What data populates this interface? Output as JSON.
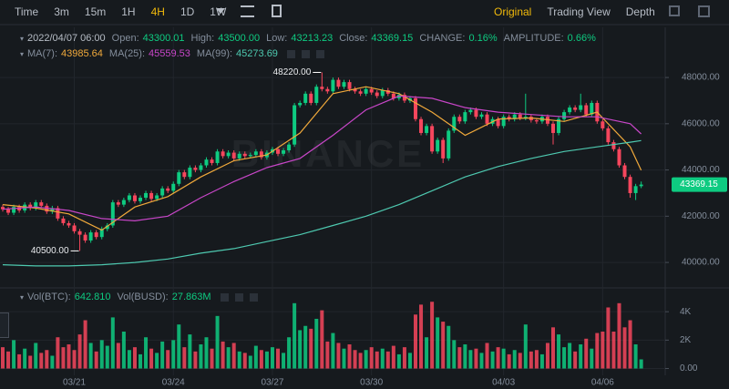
{
  "toolbar": {
    "intervals": [
      "Time",
      "3m",
      "15m",
      "1H",
      "4H",
      "1D",
      "1W"
    ],
    "active": "4H",
    "views": [
      "Original",
      "Trading View",
      "Depth"
    ],
    "active_view": "Original"
  },
  "info": {
    "date": "2022/04/07 06:00",
    "open_label": "Open:",
    "open": "43300.01",
    "high_label": "High:",
    "high": "43500.00",
    "low_label": "Low:",
    "low": "43213.23",
    "close_label": "Close:",
    "close": "43369.15",
    "change_label": "CHANGE:",
    "change": "0.16%",
    "amplitude_label": "AMPLITUDE:",
    "amplitude": "0.66%"
  },
  "chart_data": [
    {
      "type": "candlestick",
      "watermark": "BINANCE",
      "up_color": "#0ecb81",
      "down_color": "#f6465d",
      "categories": [
        null,
        null,
        null,
        null,
        null,
        null,
        null,
        null,
        null,
        null,
        null,
        null,
        null,
        "03/21",
        null,
        null,
        null,
        null,
        null,
        null,
        null,
        null,
        null,
        null,
        null,
        null,
        null,
        null,
        null,
        null,
        null,
        "03/24",
        null,
        null,
        null,
        null,
        null,
        null,
        null,
        null,
        null,
        null,
        null,
        null,
        null,
        null,
        null,
        null,
        null,
        "03/27",
        null,
        null,
        null,
        null,
        null,
        null,
        null,
        null,
        null,
        null,
        null,
        null,
        null,
        null,
        null,
        null,
        null,
        "03/30",
        null,
        null,
        null,
        null,
        null,
        null,
        null,
        null,
        null,
        null,
        null,
        null,
        null,
        null,
        null,
        null,
        null,
        null,
        null,
        null,
        null,
        null,
        null,
        "04/03",
        null,
        null,
        null,
        null,
        null,
        null,
        null,
        null,
        null,
        null,
        null,
        null,
        null,
        null,
        null,
        null,
        null,
        "04/06",
        null,
        null,
        null,
        null,
        null,
        null,
        null
      ],
      "open": [
        42400,
        42300,
        42150,
        42400,
        42250,
        42500,
        42350,
        42600,
        42450,
        42200,
        42350,
        41900,
        41700,
        41600,
        41350,
        41200,
        40950,
        41300,
        41100,
        41450,
        41600,
        42600,
        42500,
        42700,
        42900,
        42650,
        42800,
        43000,
        42750,
        42900,
        43200,
        43100,
        43400,
        43900,
        43700,
        44100,
        44000,
        44200,
        44450,
        44300,
        44800,
        44600,
        44750,
        44500,
        44700,
        44600,
        44650,
        44800,
        44550,
        44750,
        44900,
        44700,
        44850,
        45100,
        46800,
        46900,
        47300,
        46900,
        47600,
        47500,
        47400,
        47900,
        47600,
        47800,
        47500,
        47400,
        47300,
        47500,
        47350,
        47200,
        47450,
        47300,
        47100,
        47250,
        47000,
        47100,
        46200,
        45600,
        45900,
        44800,
        45300,
        44500,
        45700,
        46300,
        46100,
        46500,
        46600,
        46300,
        46400,
        46000,
        46200,
        45900,
        46300,
        46200,
        46400,
        46250,
        46300,
        46150,
        46100,
        46300,
        46000,
        45600,
        46200,
        46500,
        46700,
        46600,
        46800,
        46400,
        46900,
        46100,
        45800,
        45200,
        44900,
        44200,
        43700,
        43000,
        43300.01
      ],
      "high": [
        42500,
        42400,
        42500,
        42500,
        42600,
        42600,
        42700,
        42700,
        42550,
        42450,
        42450,
        42000,
        41800,
        41700,
        41450,
        41300,
        41400,
        41400,
        41550,
        41700,
        42700,
        42700,
        42800,
        43000,
        43000,
        42900,
        43100,
        43100,
        43000,
        43300,
        43300,
        43500,
        44000,
        44000,
        44200,
        44200,
        44300,
        44550,
        44550,
        44900,
        44900,
        44850,
        44850,
        44800,
        44800,
        44750,
        44900,
        44900,
        44850,
        45000,
        45000,
        44950,
        45200,
        46900,
        47000,
        47400,
        47400,
        47700,
        48220,
        47600,
        48000,
        48000,
        47900,
        47900,
        47600,
        47500,
        47600,
        47600,
        47450,
        47550,
        47550,
        47400,
        47350,
        47350,
        47200,
        47200,
        46300,
        46000,
        46000,
        45400,
        45400,
        45800,
        46400,
        46400,
        46600,
        46700,
        46700,
        46500,
        46500,
        46300,
        46300,
        46400,
        46400,
        46500,
        46500,
        47300,
        46400,
        46250,
        46400,
        46400,
        46100,
        46300,
        46600,
        46800,
        46800,
        47300,
        46900,
        47000,
        47000,
        46200,
        45900,
        45300,
        45000,
        44300,
        43800,
        43400,
        43500
      ],
      "low": [
        42200,
        42050,
        42050,
        42150,
        42150,
        42250,
        42250,
        42350,
        42100,
        42100,
        41800,
        41600,
        41500,
        41250,
        40500,
        40850,
        40850,
        41000,
        41000,
        41350,
        41500,
        42400,
        42400,
        42600,
        42550,
        42550,
        42700,
        42650,
        42650,
        42800,
        43000,
        43000,
        43300,
        43600,
        43600,
        43900,
        43900,
        44100,
        44200,
        44200,
        44500,
        44500,
        44400,
        44400,
        44500,
        44500,
        44550,
        44450,
        44450,
        44650,
        44600,
        44600,
        44750,
        45000,
        46700,
        46800,
        46800,
        46800,
        47400,
        47300,
        47300,
        47500,
        47500,
        47400,
        47300,
        47200,
        47200,
        47250,
        47100,
        47100,
        47200,
        47000,
        47000,
        46900,
        46900,
        46100,
        45500,
        45500,
        44700,
        44700,
        44300,
        44400,
        45600,
        46000,
        46000,
        46400,
        46200,
        46200,
        45900,
        45900,
        45800,
        45800,
        46100,
        46100,
        46150,
        46150,
        46050,
        46000,
        46000,
        45900,
        45100,
        45500,
        46100,
        46400,
        46500,
        46500,
        46300,
        46300,
        46000,
        45700,
        45100,
        44800,
        44100,
        43600,
        42800,
        42700,
        43213.23
      ],
      "close": [
        42300,
        42150,
        42400,
        42250,
        42500,
        42350,
        42600,
        42450,
        42200,
        42350,
        41900,
        41700,
        41600,
        41350,
        41200,
        40950,
        41300,
        41100,
        41450,
        41600,
        42600,
        42500,
        42700,
        42900,
        42650,
        42800,
        43000,
        42750,
        42900,
        43200,
        43100,
        43400,
        43900,
        43700,
        44100,
        44000,
        44200,
        44450,
        44300,
        44800,
        44600,
        44750,
        44500,
        44700,
        44600,
        44650,
        44800,
        44550,
        44750,
        44900,
        44700,
        44850,
        45100,
        46800,
        46900,
        47300,
        46900,
        47600,
        47500,
        47400,
        47900,
        47600,
        47800,
        47500,
        47400,
        47300,
        47500,
        47350,
        47200,
        47450,
        47300,
        47100,
        47250,
        47000,
        47100,
        46200,
        45600,
        45900,
        44800,
        45300,
        44500,
        45700,
        46300,
        46100,
        46500,
        46600,
        46300,
        46400,
        46000,
        46200,
        45900,
        46300,
        46200,
        46400,
        46250,
        46300,
        46150,
        46100,
        46300,
        46000,
        45600,
        46200,
        46500,
        46700,
        46600,
        46800,
        46400,
        46900,
        46100,
        45800,
        45200,
        44900,
        44200,
        43700,
        43000,
        43300.01,
        43369.15
      ],
      "ma": [
        {
          "name": "MA(7):",
          "color": "#f0a93b",
          "x": [
            0,
            6,
            12,
            18,
            24,
            30,
            36,
            42,
            48,
            54,
            60,
            66,
            72,
            78,
            84,
            90,
            96,
            102,
            108,
            114,
            116
          ],
          "values": [
            42500,
            42350,
            42100,
            41400,
            42400,
            42850,
            43700,
            44400,
            44650,
            45600,
            47300,
            47600,
            47300,
            46500,
            45500,
            46200,
            46250,
            46100,
            46500,
            45000,
            43985.64
          ]
        },
        {
          "name": "MA(25):",
          "color": "#c846c8",
          "x": [
            0,
            6,
            12,
            18,
            24,
            30,
            36,
            42,
            48,
            54,
            60,
            66,
            72,
            78,
            84,
            90,
            96,
            102,
            108,
            114,
            116
          ],
          "values": [
            42300,
            42400,
            42250,
            41900,
            41800,
            42000,
            42800,
            43500,
            44100,
            44500,
            45500,
            46600,
            47200,
            47100,
            46700,
            46500,
            46400,
            46300,
            46300,
            46000,
            45559.53
          ]
        },
        {
          "name": "MA(99):",
          "color": "#4ec9b0",
          "x": [
            0,
            6,
            12,
            18,
            24,
            30,
            36,
            42,
            48,
            54,
            60,
            66,
            72,
            78,
            84,
            90,
            96,
            102,
            108,
            114,
            116
          ],
          "values": [
            39900,
            39850,
            39850,
            39900,
            40000,
            40150,
            40400,
            40600,
            40900,
            41200,
            41600,
            42000,
            42500,
            43100,
            43700,
            44150,
            44500,
            44800,
            45000,
            45200,
            45273.69
          ]
        }
      ],
      "annotations": [
        {
          "value": 48220,
          "label": "48220.00"
        },
        {
          "value": 40500,
          "label": "40500.00"
        }
      ],
      "ylim": [
        38900,
        48830
      ],
      "yticks": [
        {
          "value": 40000,
          "label": "40000.00"
        },
        {
          "value": 42000,
          "label": "42000.00"
        },
        {
          "value": 44000,
          "label": "44000.00"
        },
        {
          "value": 46000,
          "label": "46000.00"
        },
        {
          "value": 48000,
          "label": "48000.00"
        }
      ],
      "grid": true
    },
    {
      "type": "bar",
      "series": [
        {
          "name": "Vol(BTC):",
          "color": "#0ecb81",
          "last_label": "642.810",
          "values": [
            1500,
            1200,
            2000,
            1000,
            1400,
            900,
            1800,
            1100,
            1300,
            900,
            2200,
            1500,
            1700,
            1300,
            2400,
            3400,
            1800,
            1200,
            2000,
            1600,
            3600,
            1800,
            2600,
            1300,
            1500,
            1000,
            2200,
            1400,
            1100,
            1900,
            1300,
            2000,
            3100,
            1500,
            2400,
            1200,
            1700,
            2200,
            1400,
            3700,
            1900,
            1500,
            1800,
            1200,
            1100,
            900,
            1600,
            1300,
            1200,
            1500,
            1400,
            1100,
            2200,
            4600,
            2700,
            3000,
            2800,
            3500,
            4100,
            1900,
            2500,
            1800,
            1400,
            1700,
            1300,
            1100,
            1300,
            1500,
            1200,
            1400,
            1200,
            1600,
            1000,
            1500,
            1100,
            3800,
            4500,
            2200,
            4700,
            3600,
            3300,
            3000,
            2000,
            1500,
            1700,
            1300,
            1400,
            1100,
            1800,
            1200,
            1500,
            1400,
            1000,
            1300,
            1100,
            3100,
            1200,
            1300,
            1000,
            1800,
            2900,
            2400,
            1500,
            1800,
            1200,
            1700,
            2100,
            1400,
            2500,
            2600,
            4300,
            2600,
            4600,
            2900,
            3400,
            1700,
            642.81
          ]
        }
      ],
      "extra_legend": {
        "name": "Vol(BUSD):",
        "label": "27.863M"
      },
      "ylim": [
        -480,
        5550
      ],
      "yticks": [
        {
          "value": 0,
          "label": "0.00"
        },
        {
          "value": 2000,
          "label": "2K"
        },
        {
          "value": 4000,
          "label": "4K"
        }
      ],
      "grid": true
    }
  ]
}
